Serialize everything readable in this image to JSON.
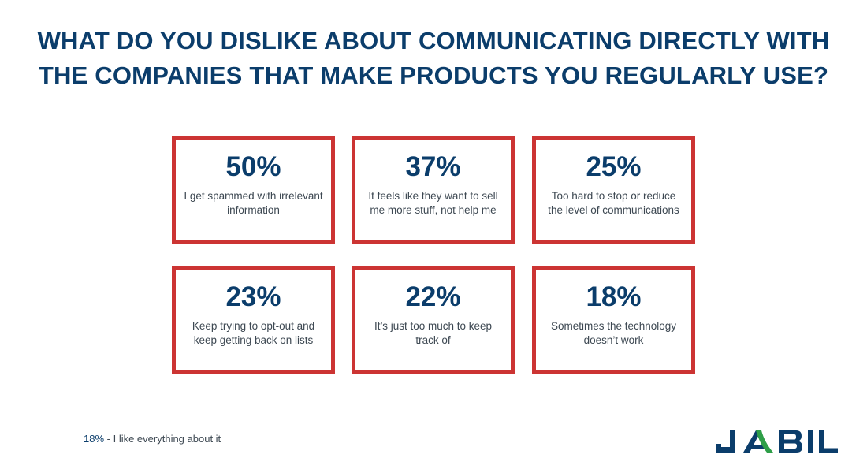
{
  "title": {
    "line1": "WHAT DO YOU DISLIKE ABOUT COMMUNICATING DIRECTLY WITH",
    "line2": "THE COMPANIES THAT MAKE PRODUCTS YOU REGULARLY USE?"
  },
  "stats": [
    {
      "value": "50%",
      "label": "I get spammed with irrelevant information"
    },
    {
      "value": "37%",
      "label": "It feels like they want to sell me more stuff, not help me"
    },
    {
      "value": "25%",
      "label": "Too hard to stop or reduce the level of communications"
    },
    {
      "value": "23%",
      "label": "Keep trying to opt-out and keep getting back on lists"
    },
    {
      "value": "22%",
      "label": "It’s just too much to keep track of"
    },
    {
      "value": "18%",
      "label": "Sometimes the technology doesn’t work"
    }
  ],
  "footnote": {
    "value": "18%",
    "separator": " - ",
    "label": "I like everything about it"
  },
  "logo": {
    "text": "JABIL",
    "icon": "jabil-logo",
    "color": "#0b3d6b",
    "accent_color": "#2e9e48"
  },
  "colors": {
    "heading": "#0b3d6b",
    "card_border": "#cc3433",
    "body_text": "#3d4852"
  }
}
